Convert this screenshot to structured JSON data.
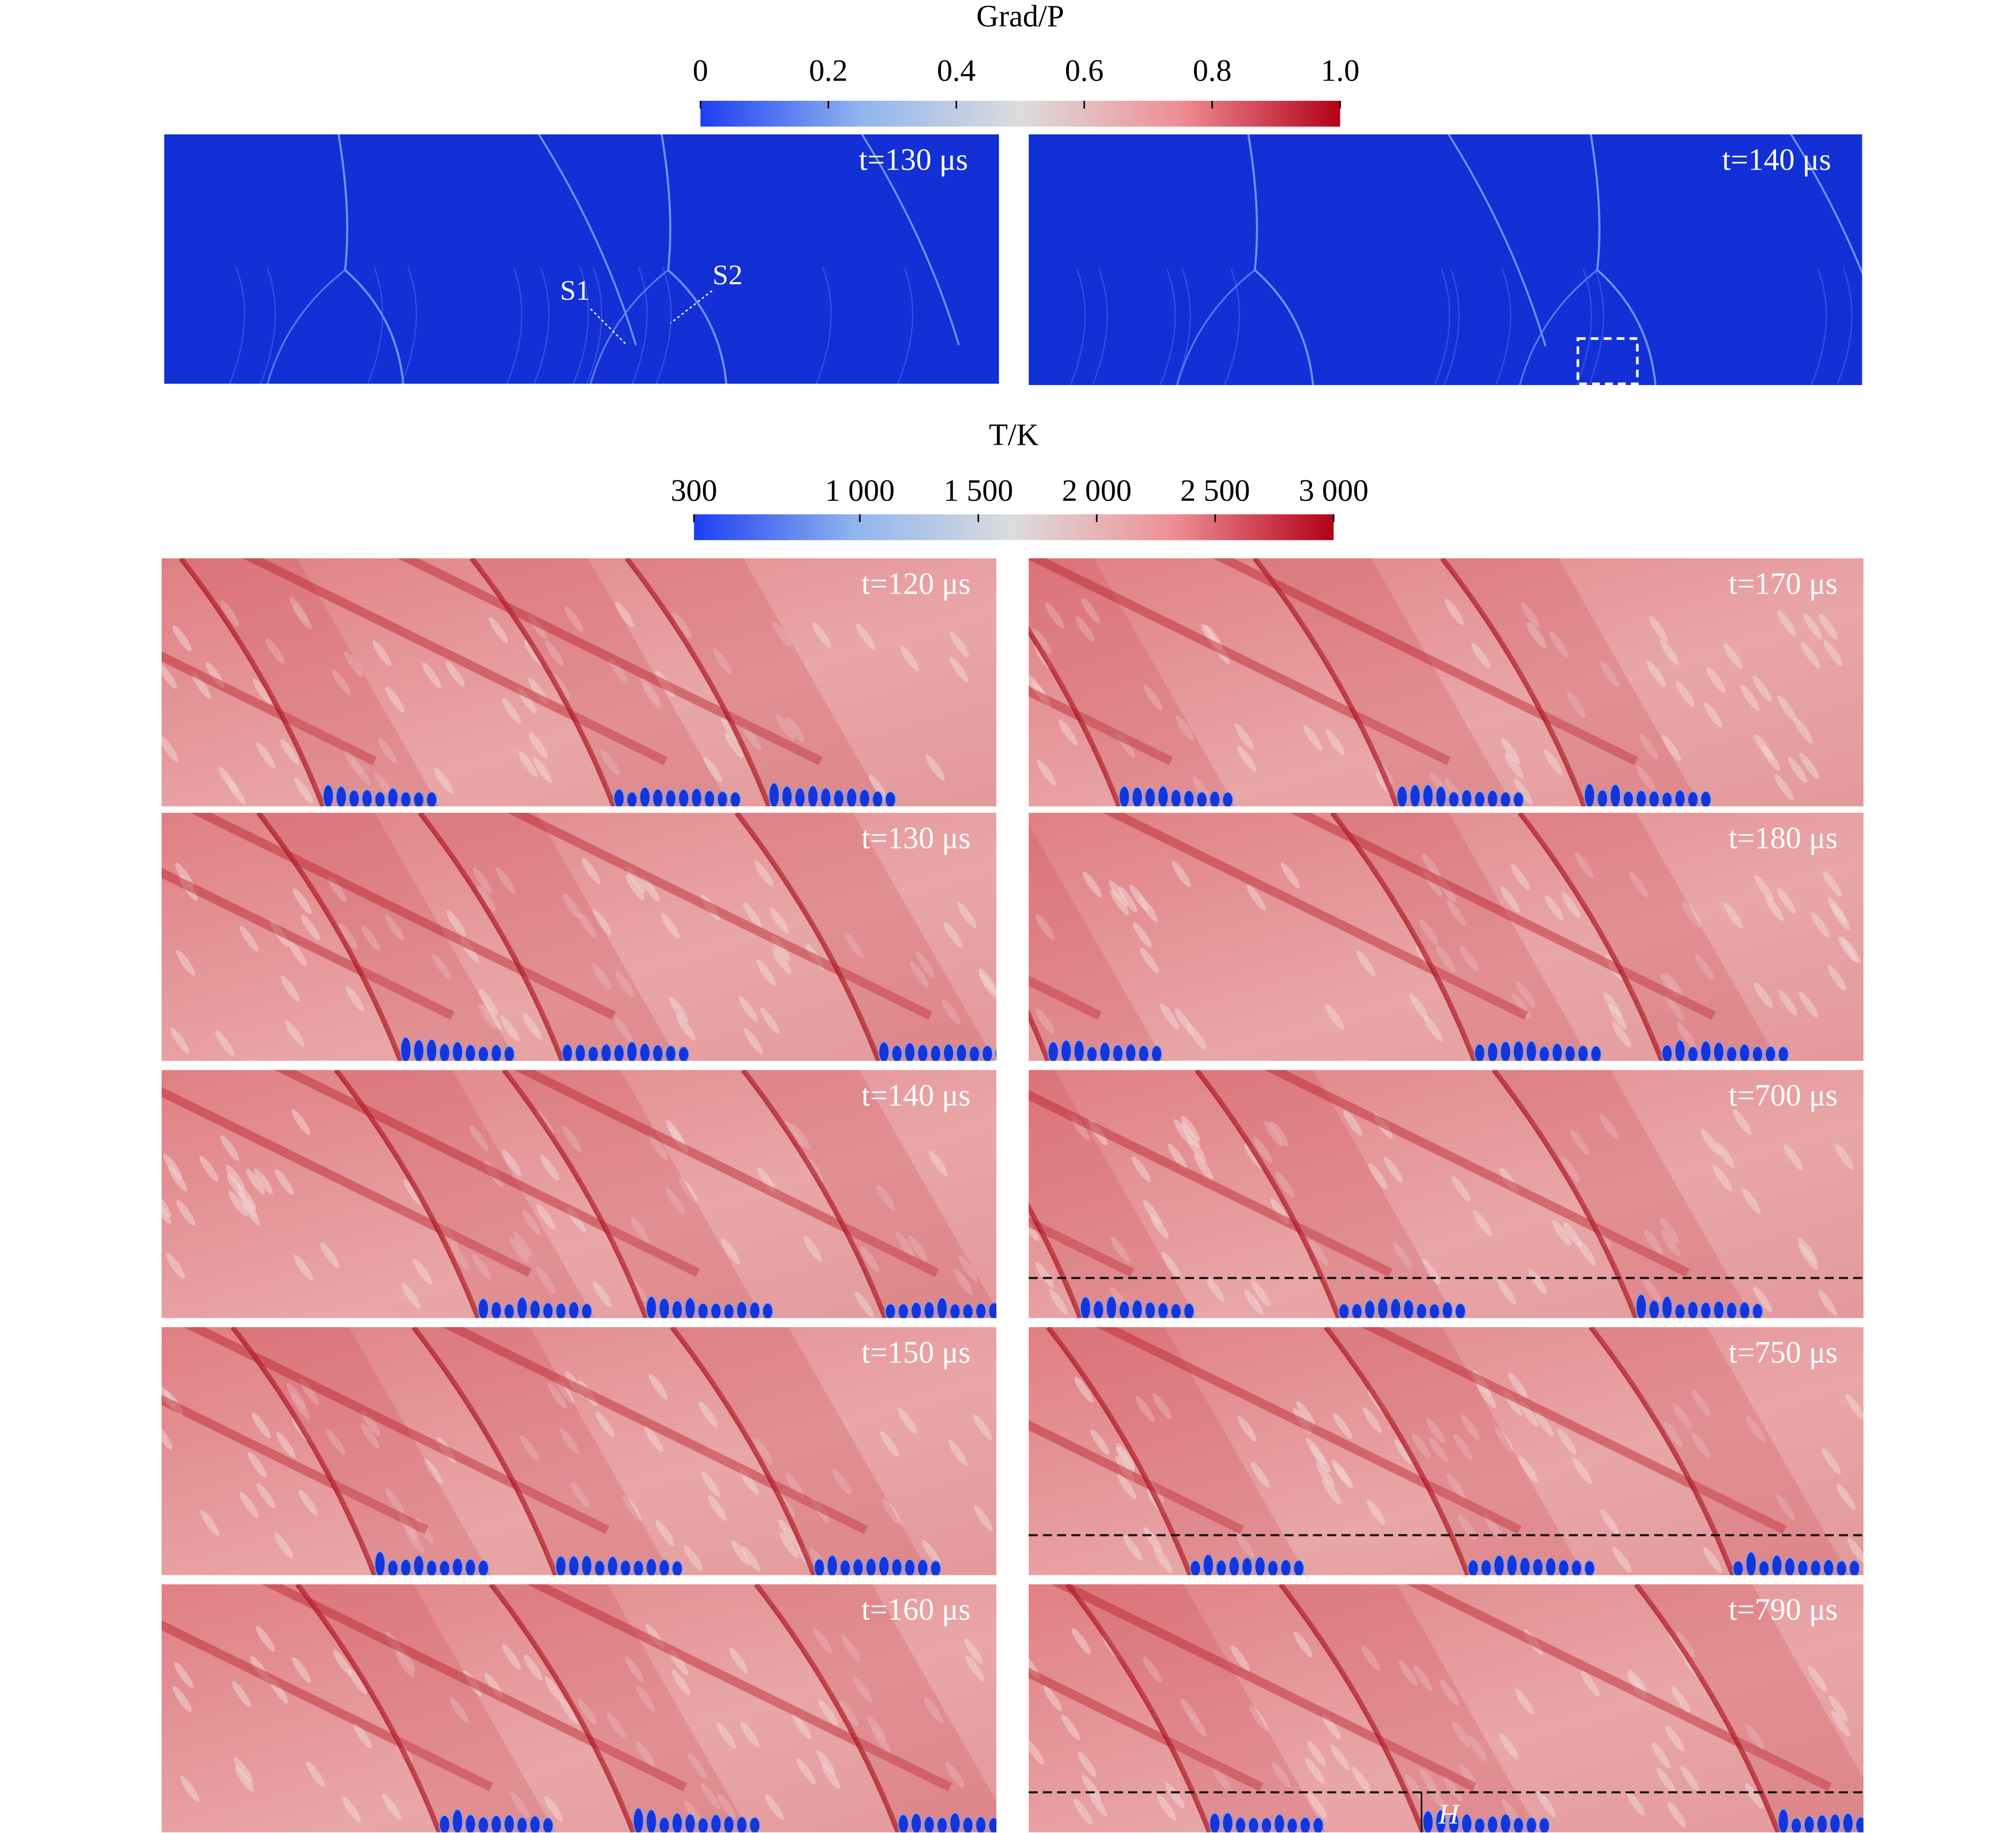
{
  "colorbars": [
    {
      "title": "Grad/P",
      "lim": [
        0,
        1
      ],
      "ticks": [
        0,
        0.2,
        0.4,
        0.6,
        0.8,
        {
          "value": 1,
          "label": "1.0"
        }
      ]
    },
    {
      "title": "T/K",
      "lim": [
        300,
        3000
      ],
      "ticks": [
        300,
        {
          "value": 1000,
          "label": "1 000"
        },
        {
          "value": 1500,
          "label": "1 500"
        },
        {
          "value": 2000,
          "label": "2 000"
        },
        {
          "value": 2500,
          "label": "2 500"
        },
        {
          "value": 3000,
          "label": "3 000"
        }
      ]
    }
  ],
  "gradient_panels": [
    {
      "label": "t=130 μs",
      "annotations": [
        "S1",
        "S2"
      ]
    },
    {
      "label": "t=140 μs"
    }
  ],
  "temperature_panels": [
    {
      "label": "t=120 μs"
    },
    {
      "label": "t=130 μs"
    },
    {
      "label": "t=140 μs"
    },
    {
      "label": "t=150 μs"
    },
    {
      "label": "t=160 μs"
    },
    {
      "label": "t=170 μs"
    },
    {
      "label": "t=180 μs"
    },
    {
      "label": "t=700 μs"
    },
    {
      "label": "t=750 μs"
    },
    {
      "label": "t=790 μs",
      "height_marker": "H"
    }
  ]
}
